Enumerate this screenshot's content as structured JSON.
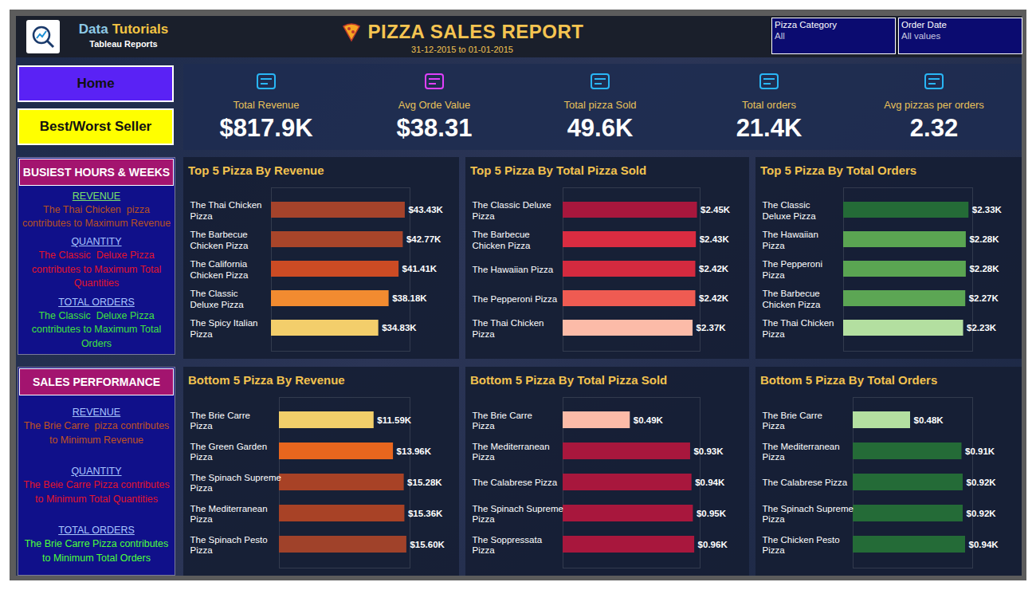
{
  "header": {
    "brand": [
      "Data",
      "Tutorials"
    ],
    "brand_sub": "Tableau Reports",
    "title": "PIZZA SALES REPORT",
    "subtitle": "31-12-2015 to 01-01-2015",
    "filters": [
      {
        "label": "Pizza Category",
        "value": "All"
      },
      {
        "label": "Order Date",
        "value": "All values"
      }
    ]
  },
  "nav": [
    "Home",
    "Best/Worst Seller"
  ],
  "kpis": [
    {
      "label": "Total Revenue",
      "value": "$817.9K"
    },
    {
      "label": "Avg Orde Value",
      "value": "$38.31"
    },
    {
      "label": "Total pizza Sold",
      "value": "49.6K"
    },
    {
      "label": "Total orders",
      "value": "21.4K"
    },
    {
      "label": "Avg pizzas per orders",
      "value": "2.32"
    }
  ],
  "panels": [
    {
      "title": "BUSIEST HOURS & WEEKS",
      "items": [
        {
          "heading": "REVENUE",
          "text": "The Thai Chicken  pizza contributes to Maximum Revenue"
        },
        {
          "heading": "QUANTITY",
          "text": "The Classic  Deluxe Pizza contributes to Maximum Total Quantities"
        },
        {
          "heading": "TOTAL ORDERS",
          "text": "The Classic  Deluxe Pizza contributes to Maximum Total Orders"
        }
      ]
    },
    {
      "title": "SALES PERFORMANCE",
      "items": [
        {
          "heading": "REVENUE",
          "text": "The Brie Carre  pizza contributes to Minimum Revenue"
        },
        {
          "heading": "QUANTITY",
          "text": "The Beie Carre Pizza contributes to Minimum Total Quantities"
        },
        {
          "heading": "TOTAL ORDERS",
          "text": "The Brie Carre Pizza contributes to Minimum Total Orders"
        }
      ]
    }
  ],
  "chart_data": [
    {
      "type": "bar",
      "orientation": "horizontal",
      "title": "Top 5 Pizza By Revenue",
      "categories": [
        "The Thai Chicken Pizza",
        "The Barbecue Chicken Pizza",
        "The California Chicken Pizza",
        "The Classic Deluxe Pizza",
        "The Spicy Italian Pizza"
      ],
      "values": [
        43.43,
        42.77,
        41.41,
        38.18,
        34.83
      ],
      "value_labels": [
        "$43.43K",
        "$42.77K",
        "$41.41K",
        "$38.18K",
        "$34.83K"
      ],
      "colors": [
        "#a5432b",
        "#a8452a",
        "#cc4b24",
        "#f28b30",
        "#f3ce6b"
      ],
      "xlim": [
        0,
        45
      ],
      "grid": false,
      "data_labels": true,
      "tick_labels": "y"
    },
    {
      "type": "bar",
      "orientation": "horizontal",
      "title": "Top 5 Pizza By Total Pizza Sold",
      "categories": [
        "The Classic Deluxe Pizza",
        "The Barbecue Chicken Pizza",
        "The Hawaiian Pizza",
        "The Pepperoni Pizza",
        "The Thai Chicken Pizza"
      ],
      "values": [
        2.45,
        2.43,
        2.42,
        2.42,
        2.37
      ],
      "value_labels": [
        "$2.45K",
        "$2.43K",
        "$2.42K",
        "$2.42K",
        "$2.37K"
      ],
      "colors": [
        "#a8173d",
        "#d92c41",
        "#d42a3f",
        "#ef5b52",
        "#fcbba8"
      ],
      "xlim": [
        0,
        2.5
      ],
      "grid": false,
      "data_labels": true,
      "tick_labels": "y"
    },
    {
      "type": "bar",
      "orientation": "horizontal",
      "title": "Top 5 Pizza By Total Orders",
      "categories": [
        "The Classic Deluxe Pizza",
        "The Hawaiian Pizza",
        "The Pepperoni Pizza",
        "The Barbecue Chicken Pizza",
        "The Thai Chicken Pizza"
      ],
      "values": [
        2.33,
        2.28,
        2.28,
        2.27,
        2.23
      ],
      "value_labels": [
        "$2.33K",
        "$2.28K",
        "$2.28K",
        "$2.27K",
        "$2.23K"
      ],
      "colors": [
        "#246b37",
        "#5aa552",
        "#5aa552",
        "#5ca654",
        "#b3dfa0"
      ],
      "xlim": [
        0,
        2.4
      ],
      "grid": false,
      "data_labels": true,
      "tick_labels": "y"
    },
    {
      "type": "bar",
      "orientation": "horizontal",
      "title": "Bottom 5 Pizza By Revenue",
      "categories": [
        "The Brie Carre Pizza",
        "The Green Garden Pizza",
        "The Spinach Supreme Pizza",
        "The Mediterranean Pizza",
        "The Spinach Pesto Pizza"
      ],
      "values": [
        11.59,
        13.96,
        15.28,
        15.36,
        15.6
      ],
      "value_labels": [
        "$11.59K",
        "$13.96K",
        "$15.28K",
        "$15.36K",
        "$15.60K"
      ],
      "colors": [
        "#f2cf6a",
        "#e8661e",
        "#a84226",
        "#a84226",
        "#a0422a"
      ],
      "xlim": [
        0,
        16
      ],
      "grid": false,
      "data_labels": true,
      "tick_labels": "y"
    },
    {
      "type": "bar",
      "orientation": "horizontal",
      "title": "Bottom 5 Pizza By Total Pizza Sold",
      "categories": [
        "The Brie Carre Pizza",
        "The Mediterranean Pizza",
        "The Calabrese Pizza",
        "The Spinach Supreme Pizza",
        "The Soppressata Pizza"
      ],
      "values": [
        0.49,
        0.93,
        0.94,
        0.95,
        0.96
      ],
      "value_labels": [
        "$0.49K",
        "$0.93K",
        "$0.94K",
        "$0.95K",
        "$0.96K"
      ],
      "colors": [
        "#fcbba8",
        "#a8173d",
        "#a8173d",
        "#a8173d",
        "#a8173d"
      ],
      "xlim": [
        0,
        1
      ],
      "grid": false,
      "data_labels": true,
      "tick_labels": "y"
    },
    {
      "type": "bar",
      "orientation": "horizontal",
      "title": "Bottom 5 Pizza By Total Orders",
      "categories": [
        "The Brie Carre Pizza",
        "The Mediterranean Pizza",
        "The Calabrese Pizza",
        "The Spinach Supreme Pizza",
        "The Chicken Pesto Pizza"
      ],
      "values": [
        0.48,
        0.91,
        0.92,
        0.92,
        0.94
      ],
      "value_labels": [
        "$0.48K",
        "$0.91K",
        "$0.92K",
        "$0.92K",
        "$0.94K"
      ],
      "colors": [
        "#b3dfa0",
        "#246b37",
        "#246b37",
        "#246b37",
        "#246b37"
      ],
      "xlim": [
        0,
        1
      ],
      "grid": false,
      "data_labels": true,
      "tick_labels": "y"
    }
  ]
}
